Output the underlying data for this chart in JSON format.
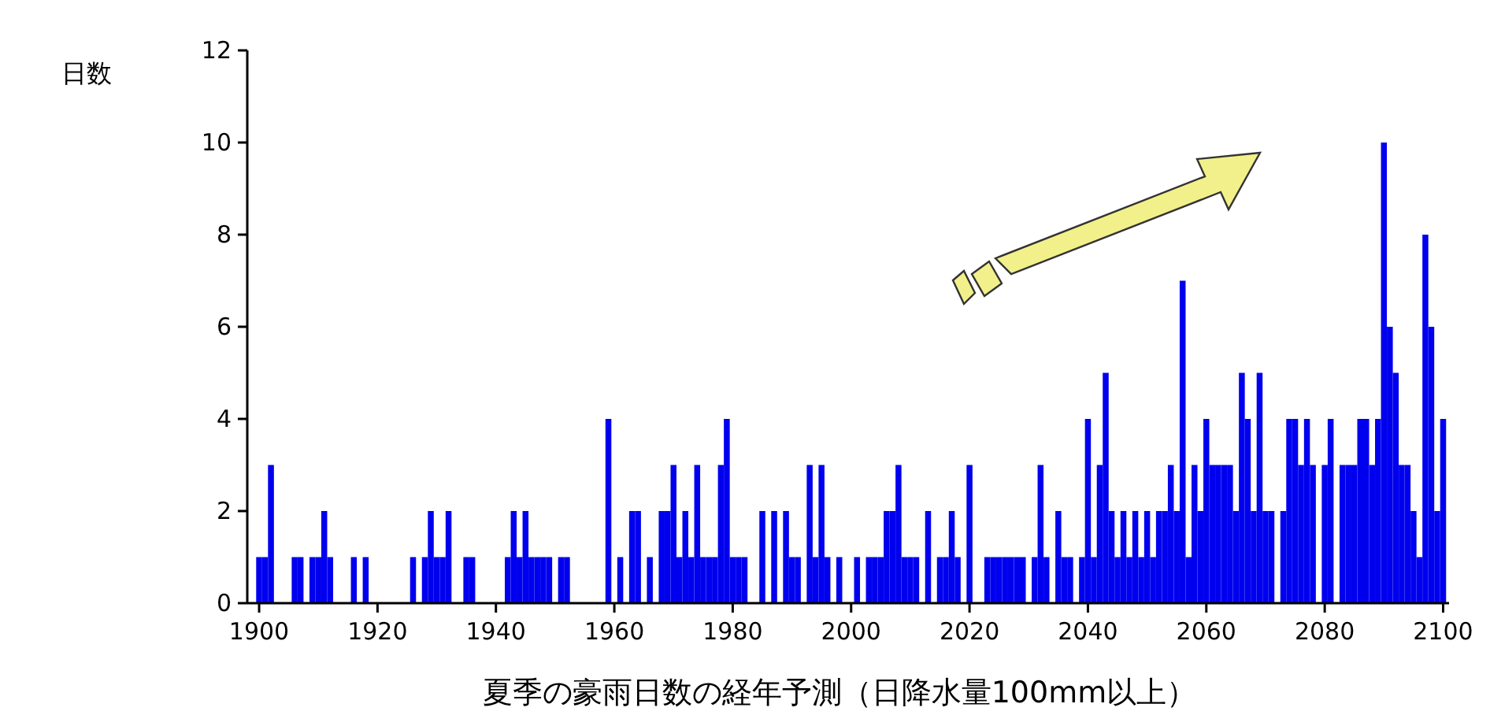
{
  "chart_data": {
    "type": "bar",
    "ylabel": "日数",
    "xlabel": "夏季の豪雨日数の経年予測（日降水量100mm以上）",
    "color": "#0000ee",
    "xlim": [
      1898,
      2101
    ],
    "ylim": [
      0,
      12
    ],
    "xticks": [
      1900,
      1920,
      1940,
      1960,
      1980,
      2000,
      2020,
      2040,
      2060,
      2080,
      2100
    ],
    "yticks": [
      0,
      2,
      4,
      6,
      8,
      10,
      12
    ],
    "x": [
      1900,
      1901,
      1902,
      1903,
      1904,
      1905,
      1906,
      1907,
      1908,
      1909,
      1910,
      1911,
      1912,
      1913,
      1914,
      1915,
      1916,
      1917,
      1918,
      1919,
      1920,
      1921,
      1922,
      1923,
      1924,
      1925,
      1926,
      1927,
      1928,
      1929,
      1930,
      1931,
      1932,
      1933,
      1934,
      1935,
      1936,
      1937,
      1938,
      1939,
      1940,
      1941,
      1942,
      1943,
      1944,
      1945,
      1946,
      1947,
      1948,
      1949,
      1950,
      1951,
      1952,
      1953,
      1954,
      1955,
      1956,
      1957,
      1958,
      1959,
      1960,
      1961,
      1962,
      1963,
      1964,
      1965,
      1966,
      1967,
      1968,
      1969,
      1970,
      1971,
      1972,
      1973,
      1974,
      1975,
      1976,
      1977,
      1978,
      1979,
      1980,
      1981,
      1982,
      1983,
      1984,
      1985,
      1986,
      1987,
      1988,
      1989,
      1990,
      1991,
      1992,
      1993,
      1994,
      1995,
      1996,
      1997,
      1998,
      1999,
      2000,
      2001,
      2002,
      2003,
      2004,
      2005,
      2006,
      2007,
      2008,
      2009,
      2010,
      2011,
      2012,
      2013,
      2014,
      2015,
      2016,
      2017,
      2018,
      2019,
      2020,
      2021,
      2022,
      2023,
      2024,
      2025,
      2026,
      2027,
      2028,
      2029,
      2030,
      2031,
      2032,
      2033,
      2034,
      2035,
      2036,
      2037,
      2038,
      2039,
      2040,
      2041,
      2042,
      2043,
      2044,
      2045,
      2046,
      2047,
      2048,
      2049,
      2050,
      2051,
      2052,
      2053,
      2054,
      2055,
      2056,
      2057,
      2058,
      2059,
      2060,
      2061,
      2062,
      2063,
      2064,
      2065,
      2066,
      2067,
      2068,
      2069,
      2070,
      2071,
      2072,
      2073,
      2074,
      2075,
      2076,
      2077,
      2078,
      2079,
      2080,
      2081,
      2082,
      2083,
      2084,
      2085,
      2086,
      2087,
      2088,
      2089,
      2090,
      2091,
      2092,
      2093,
      2094,
      2095,
      2096,
      2097,
      2098,
      2099,
      2100
    ],
    "values": [
      1,
      1,
      3,
      0,
      0,
      0,
      1,
      1,
      0,
      1,
      1,
      2,
      1,
      0,
      0,
      0,
      1,
      0,
      1,
      0,
      0,
      0,
      0,
      0,
      0,
      0,
      1,
      0,
      1,
      2,
      1,
      1,
      2,
      0,
      0,
      1,
      1,
      0,
      0,
      0,
      0,
      0,
      1,
      2,
      1,
      2,
      1,
      1,
      1,
      1,
      0,
      1,
      1,
      0,
      0,
      0,
      0,
      0,
      0,
      4,
      0,
      1,
      0,
      2,
      2,
      0,
      1,
      0,
      2,
      2,
      3,
      1,
      2,
      1,
      3,
      1,
      1,
      1,
      3,
      4,
      1,
      1,
      1,
      0,
      0,
      2,
      0,
      2,
      0,
      2,
      1,
      1,
      0,
      3,
      1,
      3,
      1,
      0,
      1,
      0,
      0,
      1,
      0,
      1,
      1,
      1,
      2,
      2,
      3,
      1,
      1,
      1,
      0,
      2,
      0,
      1,
      1,
      2,
      1,
      0,
      3,
      0,
      0,
      1,
      1,
      1,
      1,
      1,
      1,
      1,
      0,
      1,
      3,
      1,
      0,
      2,
      1,
      1,
      0,
      1,
      4,
      1,
      3,
      5,
      2,
      1,
      2,
      1,
      2,
      1,
      2,
      1,
      2,
      2,
      3,
      2,
      7,
      1,
      3,
      2,
      4,
      3,
      3,
      3,
      3,
      2,
      5,
      4,
      2,
      5,
      2,
      2,
      0,
      2,
      4,
      4,
      3,
      4,
      3,
      0,
      3,
      4,
      0,
      3,
      3,
      3,
      4,
      4,
      3,
      4,
      10,
      6,
      5,
      3,
      3,
      2,
      1,
      8,
      6,
      2,
      4
    ]
  }
}
